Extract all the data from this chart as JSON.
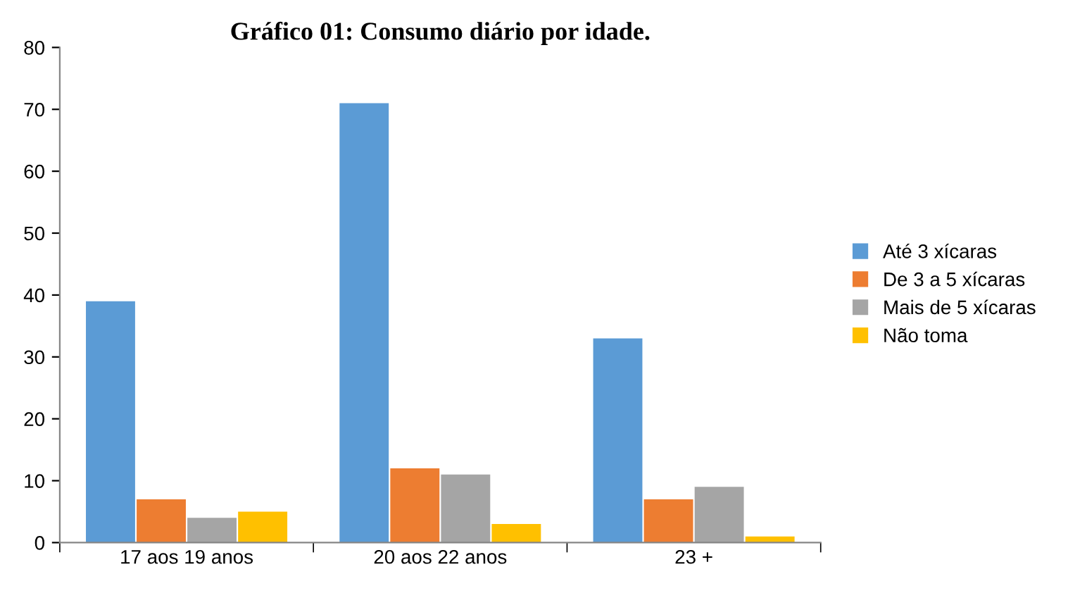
{
  "chart_data": {
    "type": "bar",
    "title": "Gráfico 01: Consumo diário por idade.",
    "categories": [
      "17 aos 19 anos",
      "20 aos 22 anos",
      "23 +"
    ],
    "series": [
      {
        "name": "Até 3 xícaras",
        "color": "#5b9bd5",
        "values": [
          39,
          71,
          33
        ]
      },
      {
        "name": "De 3 a 5 xícaras",
        "color": "#ed7d31",
        "values": [
          7,
          12,
          7
        ]
      },
      {
        "name": "Mais de 5 xícaras",
        "color": "#a5a5a5",
        "values": [
          4,
          11,
          9
        ]
      },
      {
        "name": "Não toma",
        "color": "#ffc000",
        "values": [
          5,
          3,
          1
        ]
      }
    ],
    "ylim": [
      0,
      80
    ],
    "yticks": [
      0,
      10,
      20,
      30,
      40,
      50,
      60,
      70,
      80
    ],
    "grid": false,
    "legend": "right"
  }
}
